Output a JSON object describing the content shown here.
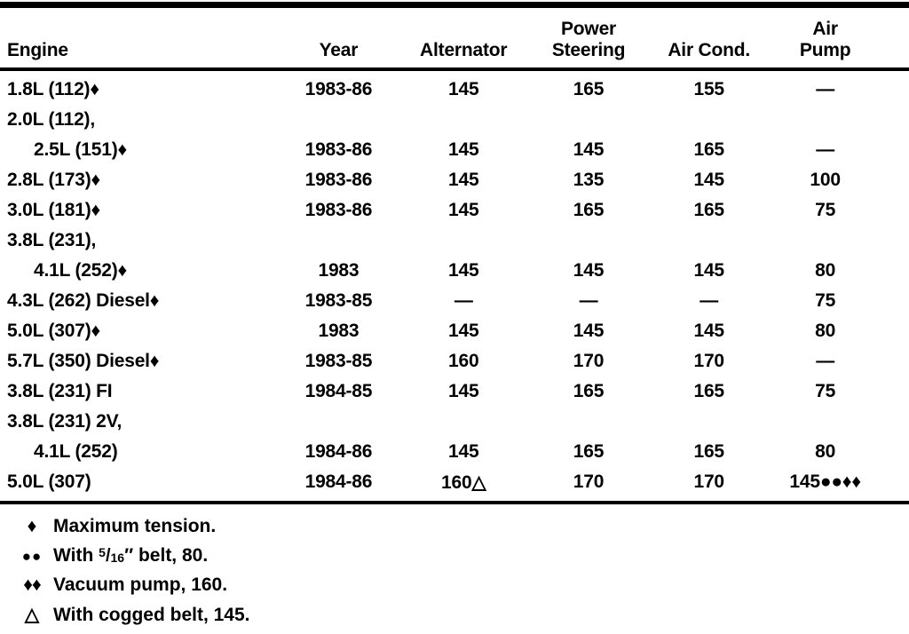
{
  "table": {
    "headers": {
      "engine": "Engine",
      "year": "Year",
      "alternator": "Alternator",
      "power_steering_line1": "Power",
      "power_steering_line2": "Steering",
      "air_cond": "Air Cond.",
      "air_pump_line1": "Air",
      "air_pump_line2": "Pump"
    },
    "rows": [
      {
        "engine": "1.8L (112)♦",
        "year": "1983-86",
        "alternator": "145",
        "power_steering": "165",
        "air_cond": "155",
        "air_pump": "—"
      },
      {
        "engine": "2.0L (112),",
        "year": "",
        "alternator": "",
        "power_steering": "",
        "air_cond": "",
        "air_pump": ""
      },
      {
        "engine": "2.5L (151)♦",
        "year": "1983-86",
        "alternator": "145",
        "power_steering": "145",
        "air_cond": "165",
        "air_pump": "—"
      },
      {
        "engine": "2.8L (173)♦",
        "year": "1983-86",
        "alternator": "145",
        "power_steering": "135",
        "air_cond": "145",
        "air_pump": "100"
      },
      {
        "engine": "3.0L (181)♦",
        "year": "1983-86",
        "alternator": "145",
        "power_steering": "165",
        "air_cond": "165",
        "air_pump": "75"
      },
      {
        "engine": "3.8L (231),",
        "year": "",
        "alternator": "",
        "power_steering": "",
        "air_cond": "",
        "air_pump": ""
      },
      {
        "engine": "4.1L (252)♦",
        "year": "1983",
        "alternator": "145",
        "power_steering": "145",
        "air_cond": "145",
        "air_pump": "80"
      },
      {
        "engine": "4.3L (262) Diesel♦",
        "year": "1983-85",
        "alternator": "—",
        "power_steering": "—",
        "air_cond": "—",
        "air_pump": "75"
      },
      {
        "engine": "5.0L (307)♦",
        "year": "1983",
        "alternator": "145",
        "power_steering": "145",
        "air_cond": "145",
        "air_pump": "80"
      },
      {
        "engine": "5.7L (350) Diesel♦",
        "year": "1983-85",
        "alternator": "160",
        "power_steering": "170",
        "air_cond": "170",
        "air_pump": "—"
      },
      {
        "engine": "3.8L (231) FI",
        "year": "1984-85",
        "alternator": "145",
        "power_steering": "165",
        "air_cond": "165",
        "air_pump": "75"
      },
      {
        "engine": "3.8L (231) 2V,",
        "year": "",
        "alternator": "",
        "power_steering": "",
        "air_cond": "",
        "air_pump": ""
      },
      {
        "engine": "4.1L (252)",
        "year": "1984-86",
        "alternator": "145",
        "power_steering": "165",
        "air_cond": "165",
        "air_pump": "80"
      },
      {
        "engine": "5.0L (307)",
        "year": "1984-86",
        "alternator": "160△",
        "power_steering": "170",
        "air_cond": "170",
        "air_pump": "145●●♦♦"
      }
    ]
  },
  "footnotes": [
    {
      "marker": "♦",
      "text": "Maximum tension."
    },
    {
      "marker": "●●",
      "text_pre": "With ",
      "frac_num": "5",
      "frac_slash": "/",
      "frac_den": "16",
      "text_post": "″ belt, 80."
    },
    {
      "marker": "♦♦",
      "text": "Vacuum pump, 160."
    },
    {
      "marker": "△",
      "text": "With cogged belt, 145."
    }
  ]
}
